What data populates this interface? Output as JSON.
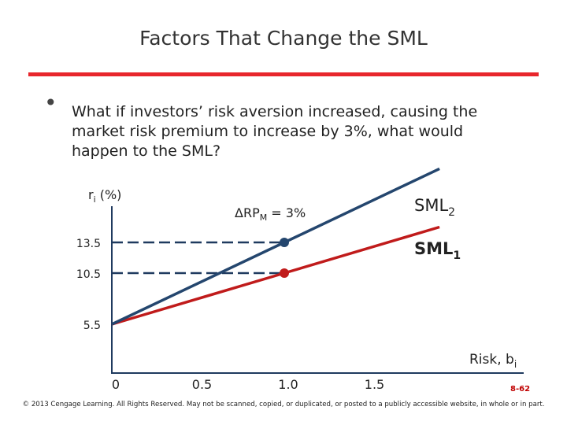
{
  "slide": {
    "title": "Factors That Change the SML",
    "bullet_text": "What if investors’ risk aversion increased, causing the market risk premium to increase by 3%, what would happen to the SML?",
    "footer": "© 2013 Cengage Learning. All Rights Reserved. May not be scanned, copied, or duplicated, or posted to a publicly accessible website, in whole or in part.",
    "page_number": "8-62"
  },
  "colors": {
    "accent_rule": "#e8262c",
    "sml1": "#c01b1b",
    "sml2": "#24466e",
    "axis": "#1f3a5f",
    "dashes": "#1f3a5f"
  },
  "chart_data": {
    "type": "line",
    "ylabel_main": "r",
    "ylabel_sub": "i",
    "ylabel_tail": " (%)",
    "xlabel_main": "Risk, b",
    "xlabel_sub": "i",
    "xticks": [
      0,
      0.5,
      1.0,
      1.5
    ],
    "xtick_labels": [
      "0",
      "0.5",
      "1.0",
      "1.5"
    ],
    "ytick_labels": [
      "13.5",
      "10.5",
      "5.5"
    ],
    "yticks": [
      13.5,
      10.5,
      5.5
    ],
    "series": [
      {
        "name_main": "SML",
        "name_sub": "1",
        "color": "#c01b1b",
        "x": [
          0,
          1.0,
          1.9
        ],
        "y": [
          5.5,
          10.5,
          15.0
        ],
        "marker_x": 1.0,
        "marker_y": 10.5
      },
      {
        "name_main": "SML",
        "name_sub": "2",
        "color": "#24466e",
        "x": [
          0,
          1.0,
          1.9
        ],
        "y": [
          5.5,
          13.5,
          20.7
        ],
        "marker_x": 1.0,
        "marker_y": 13.5
      }
    ],
    "annotation_main": "ΔRP",
    "annotation_sub": "M",
    "annotation_tail": " = 3%"
  }
}
